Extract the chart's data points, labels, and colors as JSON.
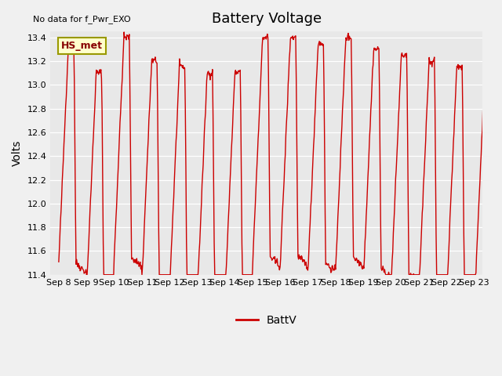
{
  "title": "Battery Voltage",
  "subtitle": "No data for f_Pwr_EXO",
  "ylabel": "Volts",
  "legend_label": "BattV",
  "legend_line_color": "#cc0000",
  "line_color": "#cc0000",
  "fig_bg_color": "#f0f0f0",
  "plot_bg_color": "#e8e8e8",
  "ylim": [
    11.4,
    13.45
  ],
  "yticks": [
    11.4,
    11.6,
    11.8,
    12.0,
    12.2,
    12.4,
    12.6,
    12.8,
    13.0,
    13.2,
    13.4
  ],
  "xtick_labels": [
    "Sep 8",
    "Sep 9",
    "Sep 10",
    "Sep 11",
    "Sep 12",
    "Sep 13",
    "Sep 14",
    "Sep 15",
    "Sep 16",
    "Sep 17",
    "Sep 18",
    "Sep 19",
    "Sep 20",
    "Sep 21",
    "Sep 22",
    "Sep 23"
  ],
  "box_label": "HS_met",
  "box_facecolor": "#ffffcc",
  "box_edgecolor": "#999900",
  "n_days": 16,
  "points_per_day": 48
}
